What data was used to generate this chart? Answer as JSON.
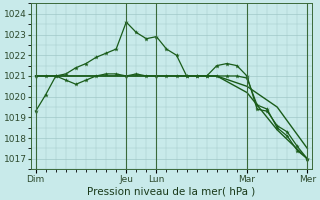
{
  "xlabel": "Pression niveau de la mer( hPa )",
  "background_color": "#c8eaea",
  "grid_color": "#a0c8c8",
  "line_color": "#1a5c1a",
  "ylim": [
    1016.5,
    1024.5
  ],
  "yticks": [
    1017,
    1018,
    1019,
    1020,
    1021,
    1022,
    1023,
    1024
  ],
  "day_labels": [
    "Dim",
    "",
    "",
    "Jeu",
    "Lun",
    "",
    "",
    "Mar",
    "",
    "Mer"
  ],
  "day_positions": [
    0,
    3,
    6,
    9,
    12,
    15,
    18,
    21,
    24,
    27
  ],
  "vline_positions": [
    0,
    9,
    12,
    21,
    27
  ],
  "xlim": [
    -0.5,
    27.5
  ],
  "line1_x": [
    0,
    1,
    2,
    3,
    4,
    5,
    6,
    7,
    8,
    9,
    10,
    11,
    12,
    13,
    14,
    15,
    16,
    17,
    18,
    19,
    20,
    21,
    22,
    23,
    24,
    25,
    26,
    27
  ],
  "line1_y": [
    1019.3,
    1020.1,
    1021.0,
    1021.1,
    1021.4,
    1021.6,
    1021.9,
    1022.1,
    1022.3,
    1023.6,
    1023.1,
    1022.8,
    1022.9,
    1022.3,
    1022.0,
    1021.0,
    1021.0,
    1021.0,
    1021.5,
    1021.6,
    1021.5,
    1021.0,
    1019.4,
    1019.3,
    1018.6,
    1018.3,
    1017.6,
    1017.0
  ],
  "line2_x": [
    0,
    1,
    2,
    3,
    4,
    5,
    6,
    7,
    8,
    9,
    10,
    11,
    12,
    13,
    14,
    15,
    16,
    17,
    18,
    19,
    20,
    21,
    22,
    23,
    24,
    25,
    26,
    27
  ],
  "line2_y": [
    1021.0,
    1021.0,
    1021.0,
    1020.8,
    1020.6,
    1020.8,
    1021.0,
    1021.1,
    1021.1,
    1021.0,
    1021.1,
    1021.0,
    1021.0,
    1021.0,
    1021.0,
    1021.0,
    1021.0,
    1021.0,
    1021.0,
    1021.0,
    1021.0,
    1020.9,
    1019.6,
    1019.4,
    1018.5,
    1018.1,
    1017.4,
    1017.0
  ],
  "line3_x": [
    0,
    3,
    6,
    9,
    12,
    15,
    18,
    21,
    24,
    27
  ],
  "line3_y": [
    1021.0,
    1021.0,
    1021.0,
    1021.0,
    1021.0,
    1021.0,
    1021.0,
    1020.5,
    1019.5,
    1017.5
  ],
  "line4_x": [
    0,
    3,
    6,
    9,
    12,
    15,
    18,
    21,
    24,
    27
  ],
  "line4_y": [
    1021.0,
    1021.0,
    1021.0,
    1021.0,
    1021.0,
    1021.0,
    1021.0,
    1020.2,
    1018.4,
    1017.0
  ]
}
